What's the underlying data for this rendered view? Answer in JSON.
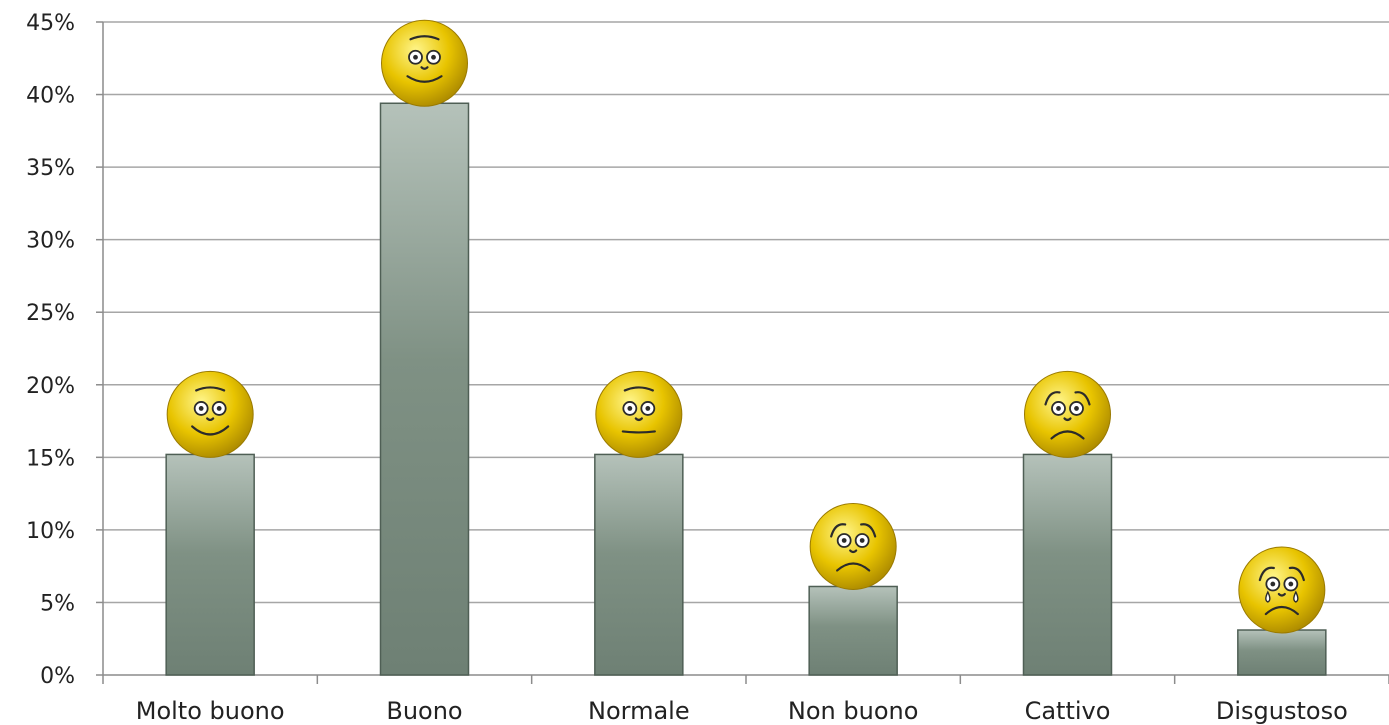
{
  "chart_data": {
    "type": "bar",
    "categories": [
      "Molto buono",
      "Buono",
      "Normale",
      "Non buono",
      "Cattivo",
      "Disgustoso"
    ],
    "values": [
      15.2,
      39.4,
      15.2,
      6.1,
      15.2,
      3.1
    ],
    "value_format": "percent",
    "ylim": [
      0,
      45
    ],
    "yticks": [
      0,
      5,
      10,
      15,
      20,
      25,
      30,
      35,
      40,
      45
    ],
    "ytick_labels": [
      "0%",
      "5%",
      "10%",
      "15%",
      "20%",
      "25%",
      "30%",
      "35%",
      "40%",
      "45%"
    ],
    "grid": true,
    "legend": "none",
    "title": "",
    "xlabel": "",
    "ylabel": "",
    "bar_color_top": "#b5c2ba",
    "bar_color_bottom": "#6e8074",
    "bar_stroke": "#4f5f55",
    "gridline_color": "#a6a6a6",
    "emoji_color": "#e8c400",
    "emoji_moods": [
      "very-happy",
      "happy",
      "neutral",
      "sad",
      "sad",
      "crying"
    ]
  }
}
